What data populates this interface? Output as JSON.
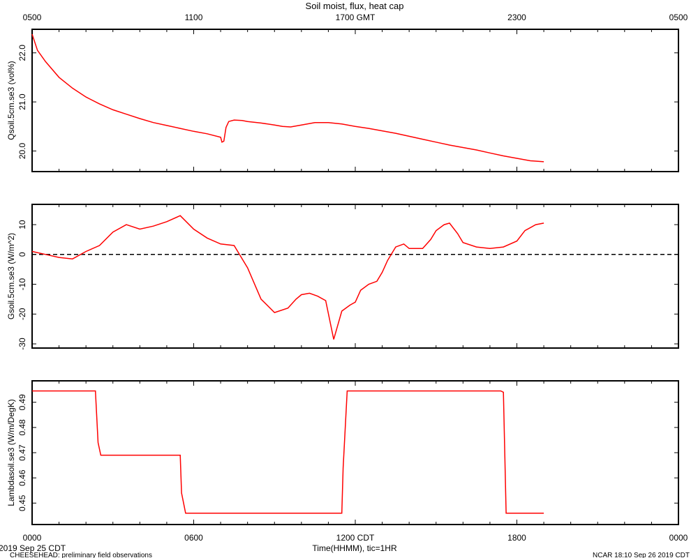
{
  "title": "Soil moist, flux, heat cap",
  "top_axis": {
    "ticks": [
      "0500",
      "1100",
      "1700 GMT",
      "2300",
      "0500"
    ]
  },
  "bottom_axis": {
    "ticks": [
      "0000",
      "0600",
      "1200 CDT",
      "1800",
      "0000"
    ],
    "label": "Time(HHMM), tic=1HR",
    "date": "2019 Sep 25 CDT"
  },
  "footer": {
    "left": "CHEESEHEAD: preliminary field observations",
    "right": "NCAR 18:10 Sep 26 2019 CDT"
  },
  "colors": {
    "series": "#ff0000",
    "frame": "#000000"
  },
  "chart_data": [
    {
      "type": "line",
      "ylabel": "Qsoil.5cm.se3 (vol%)",
      "yticks": [
        "20.0",
        "21.0",
        "22.0"
      ],
      "ylim": [
        19.58,
        22.48
      ],
      "xlim": [
        0,
        24
      ],
      "zero_line": false,
      "series": [
        {
          "x": [
            0,
            0.2,
            0.5,
            1,
            1.5,
            2,
            2.5,
            3,
            3.5,
            4,
            4.5,
            5,
            5.5,
            6,
            6.5,
            7,
            7.05,
            7.12,
            7.2,
            7.3,
            7.5,
            7.8,
            8,
            8.5,
            9,
            9.3,
            9.6,
            10,
            10.5,
            11,
            11.5,
            12,
            12.5,
            13,
            13.5,
            14,
            14.5,
            15,
            15.5,
            16,
            16.5,
            17,
            17.5,
            18,
            18.5,
            19
          ],
          "y": [
            22.38,
            22.05,
            21.82,
            21.5,
            21.28,
            21.1,
            20.96,
            20.84,
            20.75,
            20.66,
            20.58,
            20.52,
            20.46,
            20.4,
            20.35,
            20.28,
            20.18,
            20.2,
            20.48,
            20.6,
            20.63,
            20.62,
            20.6,
            20.57,
            20.53,
            20.5,
            20.49,
            20.53,
            20.58,
            20.58,
            20.55,
            20.5,
            20.46,
            20.41,
            20.36,
            20.3,
            20.24,
            20.18,
            20.12,
            20.07,
            20.02,
            19.96,
            19.9,
            19.85,
            19.8,
            19.78
          ]
        }
      ]
    },
    {
      "type": "line",
      "ylabel": "Gsoil.5cm.se3 (W/m^2)",
      "yticks": [
        "-30",
        "-20",
        "-10",
        "0",
        "10"
      ],
      "ylim": [
        -31.4,
        16.8
      ],
      "xlim": [
        0,
        24
      ],
      "zero_line": true,
      "series": [
        {
          "x": [
            0,
            0.5,
            1,
            1.5,
            2,
            2.5,
            3,
            3.5,
            4,
            4.5,
            5,
            5.5,
            6,
            6.5,
            7,
            7.5,
            8,
            8.5,
            9,
            9.5,
            9.8,
            10,
            10.3,
            10.6,
            10.9,
            11.2,
            11.5,
            11.8,
            12,
            12.2,
            12.5,
            12.8,
            13,
            13.2,
            13.5,
            13.8,
            14,
            14.5,
            14.8,
            15,
            15.3,
            15.5,
            15.8,
            16,
            16.5,
            17,
            17.5,
            18,
            18.3,
            18.7,
            19
          ],
          "y": [
            1,
            0,
            -1,
            -1.5,
            1,
            3,
            7.5,
            10,
            8.5,
            9.5,
            11,
            13,
            8.5,
            5.5,
            3.5,
            3,
            -4.5,
            -15,
            -19.5,
            -18,
            -15,
            -13.5,
            -13,
            -14,
            -15.5,
            -28.5,
            -19,
            -17,
            -16,
            -12,
            -10,
            -9,
            -6,
            -2,
            2.5,
            3.5,
            2,
            2,
            5,
            8,
            10,
            10.5,
            7,
            4,
            2.5,
            2,
            2.5,
            4.5,
            8,
            10,
            10.5
          ]
        }
      ]
    },
    {
      "type": "line",
      "ylabel": "Lambdasoil.se3 (W/m/DegK)",
      "yticks": [
        "0.45",
        "0.46",
        "0.47",
        "0.48",
        "0.49"
      ],
      "ylim": [
        0.4415,
        0.4985
      ],
      "xlim": [
        0,
        24
      ],
      "zero_line": false,
      "series": [
        {
          "x": [
            0,
            2.35,
            2.45,
            2.55,
            2.65,
            5.5,
            5.55,
            5.7,
            11.5,
            11.55,
            11.7,
            17.4,
            17.5,
            17.6,
            19
          ],
          "y": [
            0.4945,
            0.4945,
            0.474,
            0.469,
            0.469,
            0.469,
            0.454,
            0.446,
            0.446,
            0.464,
            0.4945,
            0.4945,
            0.494,
            0.446,
            0.446
          ]
        }
      ]
    }
  ]
}
